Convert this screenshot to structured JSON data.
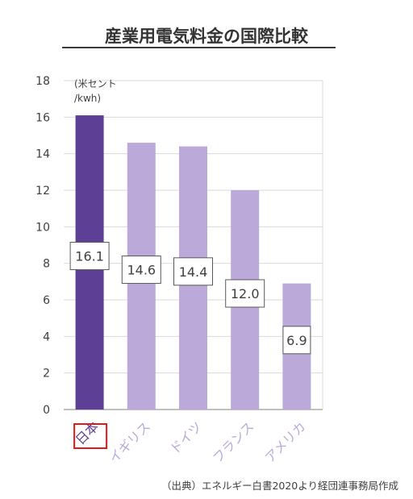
{
  "chart_data": {
    "type": "bar",
    "title": "産業用電気料金の国際比較",
    "unit_label": [
      "(米セント",
      "/kwh)"
    ],
    "categories": [
      "日本",
      "イギリス",
      "ドイツ",
      "フランス",
      "アメリカ"
    ],
    "values": [
      16.1,
      14.6,
      14.4,
      12.0,
      6.9
    ],
    "value_labels": [
      "16.1",
      "14.6",
      "14.4",
      "12.0",
      "6.9"
    ],
    "highlight_index": 0,
    "ylim": [
      0,
      18
    ],
    "yticks": [
      0,
      2,
      4,
      6,
      8,
      10,
      12,
      14,
      16,
      18
    ],
    "grid": true,
    "source": "（出典）エネルギー白書2020より経団連事務局作成",
    "colors": {
      "highlight": "#5e3f96",
      "bar": "#bba9d9",
      "grid": "#d9d9d9",
      "axis": "#808080",
      "label_border": "#595959",
      "text": "#404040",
      "title_underline": "#3a3a3a",
      "highlight_box": "#e0191b"
    }
  }
}
